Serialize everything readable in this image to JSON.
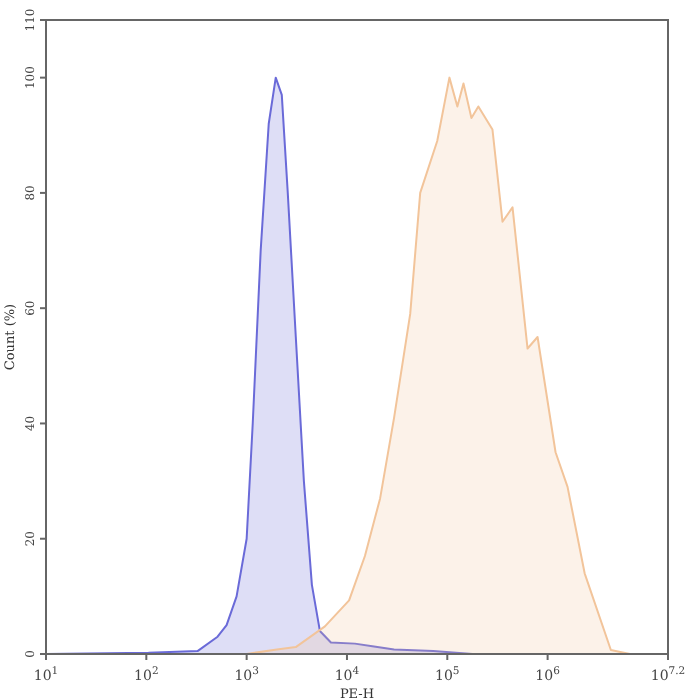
{
  "chart_data": {
    "type": "area",
    "xlabel": "PE-H",
    "ylabel": "Count (%)",
    "log": "x",
    "grid": false,
    "xlim": [
      10,
      15848932
    ],
    "ylim": [
      0,
      110
    ],
    "xticks": [
      {
        "value": 10,
        "label": "10$^{1}$"
      },
      {
        "value": 100,
        "label": "10$^{2}$"
      },
      {
        "value": 1000,
        "label": "10$^{3}$"
      },
      {
        "value": 10000,
        "label": "10$^{4}$"
      },
      {
        "value": 100000,
        "label": "10$^{5}$"
      },
      {
        "value": 1000000,
        "label": "10$^{6}$"
      },
      {
        "value": 15848932,
        "label": "10$^{7.2}$"
      }
    ],
    "yticks": [
      0,
      20,
      40,
      60,
      80,
      100,
      110
    ],
    "series": [
      {
        "color": "#6a6ad8",
        "x": [
          10,
          105,
          324,
          513,
          631,
          794,
          1000,
          1150,
          1380,
          1660,
          1950,
          2240,
          2570,
          3090,
          3720,
          4470,
          5370,
          6920,
          12000,
          18600,
          29500,
          72400,
          178000,
          15848932
        ],
        "values": [
          0,
          0.2,
          0.5,
          3,
          5,
          10,
          20,
          40,
          70,
          92,
          100,
          97,
          80,
          55,
          30,
          12,
          4,
          2,
          1.8,
          1.3,
          0.8,
          0.5,
          0,
          0
        ]
      },
      {
        "color": "#f2c49a",
        "x": [
          1000,
          2000,
          3090,
          6030,
          10500,
          15100,
          21400,
          29500,
          42700,
          53700,
          79400,
          105000,
          126000,
          145000,
          174000,
          204000,
          282000,
          355000,
          447000,
          631000,
          794000,
          1200000,
          1580000,
          2340000,
          4270000,
          6610000,
          15848932
        ],
        "values": [
          0,
          0.8,
          1.2,
          4.8,
          9.3,
          17,
          27,
          41,
          59,
          80,
          89,
          100,
          95,
          99,
          93,
          95,
          91,
          75,
          77.5,
          53,
          55,
          35,
          29,
          14,
          0.7,
          0,
          0
        ]
      }
    ]
  }
}
